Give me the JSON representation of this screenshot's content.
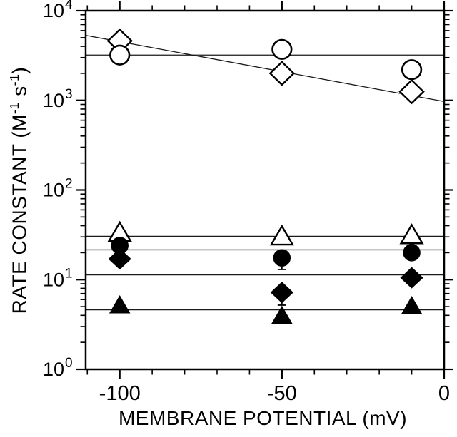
{
  "chart_data": {
    "type": "scatter",
    "title": "",
    "xlabel": "MEMBRANE POTENTIAL (mV)",
    "ylabel": "RATE CONSTANT (M-1 s-1)",
    "ylabel_parts": {
      "p1": "RATE CONSTANT (M",
      "e1": "-1",
      "p2": " s",
      "e2": "-1",
      "p3": ")"
    },
    "x_axis": {
      "scale": "linear",
      "lim": [
        -110.5,
        0
      ],
      "major_ticks": [
        -100,
        -50,
        0
      ],
      "tick_labels": [
        "-100",
        "-50",
        "0"
      ],
      "minor_step": 10
    },
    "y_axis": {
      "scale": "log",
      "lim": [
        1,
        10000
      ],
      "major_ticks": [
        1,
        10,
        100,
        1000,
        10000
      ],
      "tick_labels": [
        {
          "base": "10",
          "exp": "0"
        },
        {
          "base": "10",
          "exp": "1"
        },
        {
          "base": "10",
          "exp": "2"
        },
        {
          "base": "10",
          "exp": "3"
        },
        {
          "base": "10",
          "exp": "4"
        }
      ]
    },
    "grid": false,
    "legend": "none",
    "colors": {
      "foreground": "#000000",
      "background": "#ffffff"
    },
    "series": [
      {
        "name": "open-diamond",
        "label": "open diamond",
        "marker": "diamond",
        "fill": "white",
        "points": [
          {
            "x": -100,
            "y": 4600
          },
          {
            "x": -50,
            "y": 2000
          },
          {
            "x": -10,
            "y": 1250
          }
        ],
        "fit_line": {
          "type": "sloped",
          "x1": -110.5,
          "y1": 5300,
          "x2": 0,
          "y2": 970
        }
      },
      {
        "name": "open-circle",
        "label": "open circle",
        "marker": "circle",
        "fill": "white",
        "points": [
          {
            "x": -100,
            "y": 3200
          },
          {
            "x": -50,
            "y": 3700
          },
          {
            "x": -10,
            "y": 2200
          }
        ],
        "fit_line": {
          "type": "horizontal",
          "y": 3200
        }
      },
      {
        "name": "open-triangle",
        "label": "open triangle",
        "marker": "triangle",
        "fill": "white",
        "points": [
          {
            "x": -100,
            "y": 33
          },
          {
            "x": -50,
            "y": 30
          },
          {
            "x": -10,
            "y": 31
          }
        ],
        "fit_line": {
          "type": "horizontal",
          "y": 30.5
        }
      },
      {
        "name": "filled-circle",
        "label": "filled circle",
        "marker": "circle",
        "fill": "black",
        "points": [
          {
            "x": -100,
            "y": 24
          },
          {
            "x": -50,
            "y": 17.5,
            "err_lo": 13
          },
          {
            "x": -10,
            "y": 20
          }
        ],
        "fit_line": {
          "type": "horizontal",
          "y": 21.5
        }
      },
      {
        "name": "filled-diamond",
        "label": "filled diamond",
        "marker": "diamond",
        "fill": "black",
        "points": [
          {
            "x": -100,
            "y": 17
          },
          {
            "x": -50,
            "y": 7.2,
            "err_lo": 5.2
          },
          {
            "x": -10,
            "y": 10.5
          }
        ],
        "fit_line": {
          "type": "horizontal",
          "y": 11.3
        }
      },
      {
        "name": "filled-triangle",
        "label": "filled triangle",
        "marker": "triangle",
        "fill": "black",
        "points": [
          {
            "x": -100,
            "y": 5.1
          },
          {
            "x": -50,
            "y": 3.9
          },
          {
            "x": -10,
            "y": 5.0
          }
        ],
        "fit_line": {
          "type": "horizontal",
          "y": 4.6
        }
      }
    ]
  }
}
